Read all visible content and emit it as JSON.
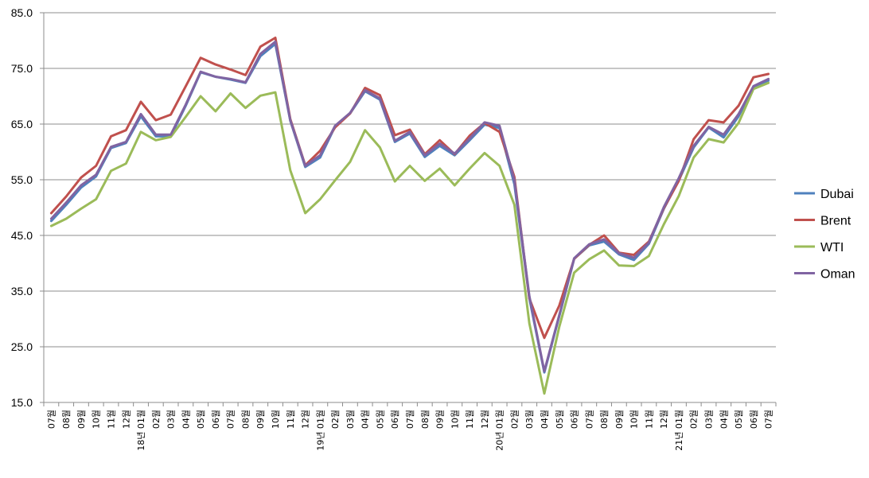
{
  "chart_data": {
    "type": "line",
    "title": "",
    "xlabel": "",
    "ylabel": "",
    "ylim": [
      15,
      85
    ],
    "yticks": [
      "15.0",
      "25.0",
      "35.0",
      "45.0",
      "55.0",
      "65.0",
      "75.0",
      "85.0"
    ],
    "grid": "horizontal",
    "legend_position": "right",
    "month_suffix": "월",
    "categories": [
      "07",
      "08",
      "09",
      "10",
      "11",
      "12",
      "01",
      "02",
      "03",
      "04",
      "05",
      "06",
      "07",
      "08",
      "09",
      "10",
      "11",
      "12",
      "01",
      "02",
      "03",
      "04",
      "05",
      "06",
      "07",
      "08",
      "09",
      "10",
      "11",
      "12",
      "01",
      "02",
      "03",
      "04",
      "05",
      "06",
      "07",
      "08",
      "09",
      "10",
      "11",
      "12",
      "01",
      "02",
      "03",
      "04",
      "05",
      "06",
      "07"
    ],
    "year_labels": [
      {
        "index": 6,
        "label": "18년"
      },
      {
        "index": 18,
        "label": "19년"
      },
      {
        "index": 30,
        "label": "20년"
      },
      {
        "index": 42,
        "label": "21년"
      }
    ],
    "series": [
      {
        "name": "Dubai",
        "color": "#4F81BD",
        "values": [
          47.6,
          50.5,
          53.6,
          55.6,
          60.7,
          61.6,
          66.4,
          62.8,
          62.8,
          68.3,
          74.3,
          73.5,
          73.0,
          72.4,
          77.2,
          79.4,
          65.6,
          57.3,
          59.0,
          64.6,
          66.9,
          70.9,
          69.4,
          61.8,
          63.3,
          59.1,
          61.1,
          59.4,
          62.1,
          64.9,
          64.3,
          54.2,
          33.7,
          20.4,
          30.5,
          40.8,
          43.2,
          43.9,
          41.6,
          40.6,
          43.5,
          49.8,
          54.9,
          60.8,
          64.4,
          62.6,
          66.4,
          71.6,
          72.8
        ]
      },
      {
        "name": "Brent",
        "color": "#C0504D",
        "values": [
          49.0,
          52.0,
          55.4,
          57.5,
          62.8,
          63.9,
          69.0,
          65.7,
          66.7,
          71.8,
          76.9,
          75.7,
          74.8,
          73.8,
          78.9,
          80.5,
          65.9,
          57.6,
          60.2,
          64.4,
          66.9,
          71.5,
          70.2,
          63.0,
          64.0,
          59.6,
          62.1,
          59.6,
          62.9,
          65.2,
          63.6,
          55.5,
          33.7,
          26.6,
          32.4,
          40.8,
          43.3,
          45.0,
          41.9,
          41.5,
          43.9,
          49.9,
          54.8,
          62.3,
          65.7,
          65.3,
          68.3,
          73.4,
          74.0
        ]
      },
      {
        "name": "WTI",
        "color": "#9BBB59",
        "values": [
          46.7,
          48.0,
          49.8,
          51.5,
          56.6,
          57.9,
          63.6,
          62.1,
          62.7,
          66.3,
          70.0,
          67.3,
          70.5,
          67.9,
          70.1,
          70.7,
          56.7,
          49.0,
          51.5,
          54.9,
          58.2,
          63.9,
          60.8,
          54.7,
          57.5,
          54.8,
          57.0,
          54.0,
          57.0,
          59.8,
          57.5,
          50.5,
          29.2,
          16.6,
          28.6,
          38.3,
          40.7,
          42.3,
          39.6,
          39.5,
          41.3,
          47.0,
          52.1,
          59.0,
          62.3,
          61.7,
          65.2,
          71.3,
          72.4
        ]
      },
      {
        "name": "Oman",
        "color": "#8064A2",
        "values": [
          48.0,
          50.9,
          54.0,
          55.9,
          60.9,
          61.8,
          66.8,
          63.1,
          63.1,
          68.5,
          74.4,
          73.5,
          73.1,
          72.5,
          77.6,
          79.8,
          65.7,
          57.5,
          59.4,
          64.7,
          67.0,
          71.1,
          69.6,
          62.0,
          63.6,
          59.4,
          61.5,
          59.7,
          62.4,
          65.3,
          64.7,
          54.9,
          34.1,
          20.6,
          30.7,
          40.9,
          43.4,
          44.3,
          41.8,
          41.0,
          43.7,
          50.1,
          55.3,
          61.1,
          64.5,
          63.1,
          66.8,
          71.8,
          73.1
        ]
      }
    ]
  }
}
